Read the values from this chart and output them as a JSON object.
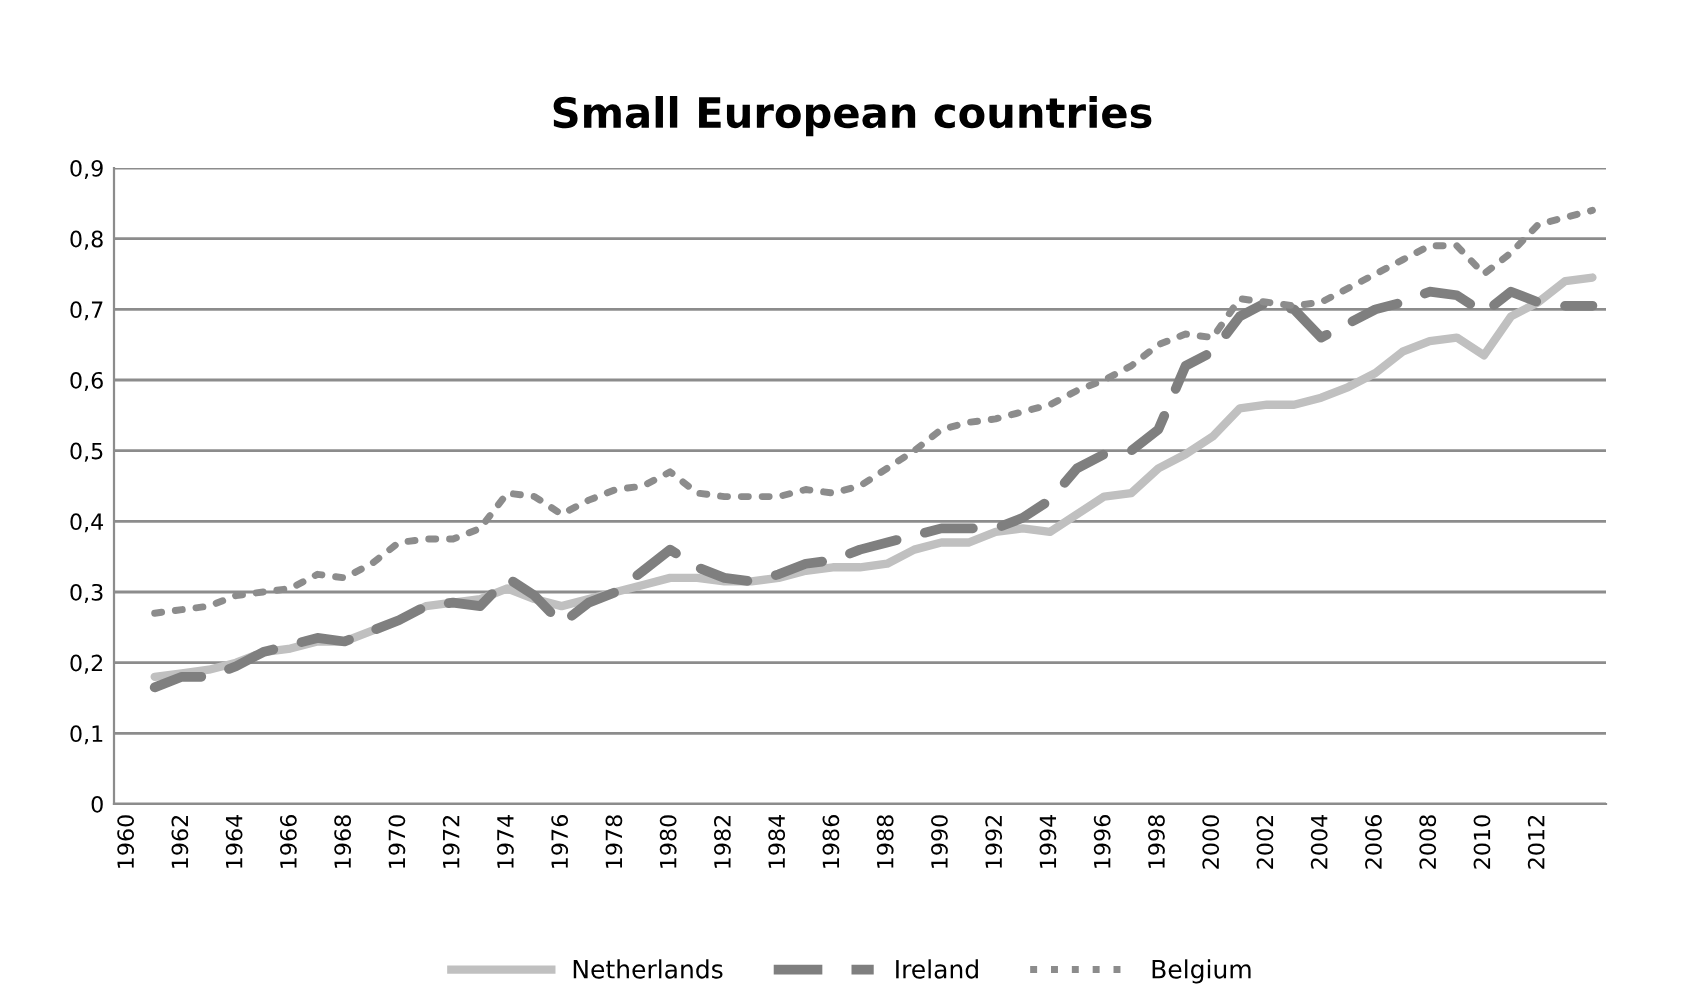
{
  "chart_data": {
    "type": "line",
    "title": "Small European countries",
    "categories": [
      "1960",
      null,
      "1962",
      null,
      "1964",
      null,
      "1966",
      null,
      "1968",
      null,
      "1970",
      null,
      "1972",
      null,
      "1974",
      null,
      "1976",
      null,
      "1978",
      null,
      "1980",
      null,
      "1982",
      null,
      "1984",
      null,
      "1986",
      null,
      "1988",
      null,
      "1990",
      null,
      "1992",
      null,
      "1994",
      null,
      "1996",
      null,
      "1998",
      null,
      "2000",
      null,
      "2002",
      null,
      "2004",
      null,
      "2006",
      null,
      "2008",
      null,
      "2010",
      null,
      "2012",
      null,
      null
    ],
    "series": [
      {
        "name": "Netherlands",
        "color": "#c0c0c0",
        "line_style": "solid",
        "values": [
          null,
          0.18,
          0.185,
          0.19,
          0.2,
          0.215,
          0.22,
          0.23,
          0.23,
          0.245,
          0.26,
          0.28,
          0.285,
          0.29,
          0.305,
          0.29,
          0.28,
          0.29,
          0.3,
          0.31,
          0.32,
          0.32,
          0.315,
          0.315,
          0.32,
          0.33,
          0.335,
          0.335,
          0.34,
          0.36,
          0.37,
          0.37,
          0.385,
          0.39,
          0.385,
          0.41,
          0.435,
          0.44,
          0.475,
          0.495,
          0.52,
          0.56,
          0.565,
          0.565,
          0.575,
          0.59,
          0.61,
          0.64,
          0.655,
          0.66,
          0.635,
          0.69,
          0.71,
          0.74,
          0.745
        ]
      },
      {
        "name": "Ireland",
        "color": "#7f7f7f",
        "line_style": "dashed",
        "values": [
          null,
          0.165,
          0.18,
          0.18,
          0.195,
          0.215,
          0.225,
          0.235,
          0.23,
          0.245,
          0.26,
          0.28,
          0.285,
          0.28,
          0.32,
          0.295,
          0.255,
          0.285,
          0.3,
          0.33,
          0.36,
          0.335,
          0.32,
          0.315,
          0.325,
          0.34,
          0.345,
          0.36,
          0.37,
          0.38,
          0.39,
          0.39,
          0.39,
          0.405,
          0.43,
          0.475,
          0.495,
          0.5,
          0.53,
          0.62,
          0.64,
          0.69,
          0.71,
          0.7,
          0.66,
          0.68,
          0.7,
          0.71,
          0.725,
          0.72,
          0.695,
          0.725,
          0.71,
          0.705,
          0.705
        ]
      },
      {
        "name": "Belgium",
        "color": "#8c8c8c",
        "line_style": "dotted",
        "values": [
          null,
          0.27,
          0.275,
          0.28,
          0.295,
          0.3,
          0.305,
          0.325,
          0.32,
          0.34,
          0.37,
          0.375,
          0.375,
          0.39,
          0.44,
          0.435,
          0.41,
          0.43,
          0.445,
          0.45,
          0.47,
          0.44,
          0.435,
          0.435,
          0.435,
          0.445,
          0.44,
          0.45,
          0.475,
          0.5,
          0.53,
          0.54,
          0.545,
          0.555,
          0.565,
          0.585,
          0.6,
          0.62,
          0.65,
          0.665,
          0.66,
          0.715,
          0.71,
          0.705,
          0.71,
          0.73,
          0.75,
          0.77,
          0.79,
          0.79,
          0.75,
          0.78,
          0.82,
          0.83,
          0.84
        ]
      }
    ],
    "ylim": [
      0,
      0.9
    ],
    "yticks": [
      0,
      {
        "value": 0.1,
        "label": "0,1"
      },
      {
        "value": 0.2,
        "label": "0,2"
      },
      {
        "value": 0.3,
        "label": "0,3"
      },
      {
        "value": 0.4,
        "label": "0,4"
      },
      {
        "value": 0.5,
        "label": "0,5"
      },
      {
        "value": 0.6,
        "label": "0,6"
      },
      {
        "value": 0.7,
        "label": "0,7"
      },
      {
        "value": 0.8,
        "label": "0,8"
      },
      {
        "value": 0.9,
        "label": "0,9"
      }
    ],
    "grid": "y",
    "legend": "bottom"
  }
}
